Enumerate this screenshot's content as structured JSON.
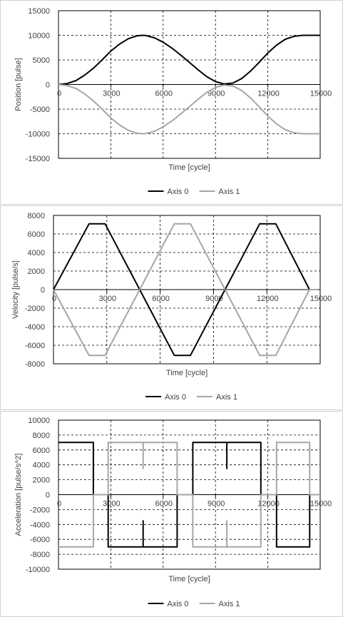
{
  "chart_data": [
    {
      "type": "line",
      "xlabel": "Time [cycle]",
      "ylabel": "Position [pulse]",
      "xlim": [
        0,
        15000
      ],
      "ylim": [
        -15000,
        15000
      ],
      "xticks": [
        0,
        3000,
        6000,
        9000,
        12000,
        15000
      ],
      "yticks": [
        -15000,
        -10000,
        -5000,
        0,
        5000,
        10000,
        15000
      ],
      "grid": "dashed",
      "legend": "bottom-center",
      "series": [
        {
          "name": "Axis 0",
          "color": "#000000",
          "x": [
            0,
            500,
            1000,
            1500,
            2000,
            2500,
            3000,
            3500,
            4000,
            4500,
            4800,
            5000,
            5500,
            6000,
            6500,
            7000,
            7500,
            8000,
            8500,
            9000,
            9500,
            10000,
            10500,
            11000,
            11500,
            12000,
            12500,
            13000,
            13500,
            14000,
            14400,
            15000
          ],
          "y": [
            0,
            200,
            800,
            1900,
            3300,
            5000,
            6800,
            8200,
            9300,
            9900,
            10000,
            9950,
            9500,
            8600,
            7400,
            6000,
            4500,
            3000,
            1600,
            600,
            100,
            300,
            1200,
            2700,
            4500,
            6400,
            8000,
            9200,
            9800,
            10000,
            10000,
            10000
          ]
        },
        {
          "name": "Axis 1",
          "color": "#a6a6a6",
          "x": [
            0,
            500,
            1000,
            1500,
            2000,
            2500,
            3000,
            3500,
            4000,
            4500,
            4800,
            5000,
            5500,
            6000,
            6500,
            7000,
            7500,
            8000,
            8500,
            9000,
            9500,
            10000,
            10500,
            11000,
            11500,
            12000,
            12500,
            13000,
            13500,
            14000,
            14400,
            15000
          ],
          "y": [
            0,
            -200,
            -800,
            -1900,
            -3300,
            -5000,
            -6800,
            -8200,
            -9300,
            -9900,
            -10000,
            -9950,
            -9500,
            -8600,
            -7400,
            -6000,
            -4500,
            -3000,
            -1600,
            -600,
            -100,
            -300,
            -1200,
            -2700,
            -4500,
            -6400,
            -8000,
            -9200,
            -9800,
            -10000,
            -10000,
            -10000
          ]
        }
      ]
    },
    {
      "type": "line",
      "xlabel": "Time [cycle]",
      "ylabel": "Velocity [pulse/s]",
      "xlim": [
        0,
        15000
      ],
      "ylim": [
        -8000,
        8000
      ],
      "xticks": [
        0,
        3000,
        6000,
        9000,
        12000,
        15000
      ],
      "yticks": [
        -8000,
        -6000,
        -4000,
        -2000,
        0,
        2000,
        4000,
        6000,
        8000
      ],
      "grid": "dashed",
      "legend": "bottom-center",
      "series": [
        {
          "name": "Axis 0",
          "color": "#000000",
          "x": [
            0,
            2000,
            2900,
            4850,
            6800,
            7700,
            9650,
            11600,
            12500,
            14400,
            14900
          ],
          "y": [
            0,
            7100,
            7100,
            0,
            -7100,
            -7100,
            0,
            7100,
            7100,
            0,
            0
          ]
        },
        {
          "name": "Axis 1",
          "color": "#a6a6a6",
          "x": [
            0,
            2000,
            2900,
            4850,
            6800,
            7700,
            9650,
            11600,
            12500,
            14400,
            14900
          ],
          "y": [
            0,
            -7100,
            -7100,
            0,
            7100,
            7100,
            0,
            -7100,
            -7100,
            0,
            0
          ]
        }
      ]
    },
    {
      "type": "line",
      "xlabel": "Time [cycle]",
      "ylabel": "Acceleration [pulse/s^2]",
      "xlim": [
        0,
        15000
      ],
      "ylim": [
        -10000,
        10000
      ],
      "xticks": [
        0,
        3000,
        6000,
        9000,
        12000,
        15000
      ],
      "yticks": [
        -10000,
        -8000,
        -6000,
        -4000,
        -2000,
        0,
        2000,
        4000,
        6000,
        8000,
        10000
      ],
      "grid": "dashed",
      "legend": "bottom-center",
      "series": [
        {
          "name": "Axis 0",
          "color": "#000000",
          "x": [
            0,
            2000,
            2000,
            2850,
            2850,
            4850,
            4850,
            4850,
            4850,
            6800,
            6800,
            7700,
            7700,
            9650,
            9650,
            9650,
            9650,
            11600,
            11600,
            12500,
            12500,
            14400,
            14400,
            15000
          ],
          "y": [
            7000,
            7000,
            0,
            0,
            -7000,
            -7000,
            -3500,
            -3500,
            -7000,
            -7000,
            0,
            0,
            7000,
            7000,
            3500,
            3500,
            7000,
            7000,
            0,
            0,
            -7000,
            -7000,
            0,
            0
          ]
        },
        {
          "name": "Axis 1",
          "color": "#a6a6a6",
          "x": [
            0,
            2000,
            2000,
            2850,
            2850,
            4850,
            4850,
            4850,
            4850,
            6800,
            6800,
            7700,
            7700,
            9650,
            9650,
            9650,
            9650,
            11600,
            11600,
            12500,
            12500,
            14400,
            14400,
            15000
          ],
          "y": [
            -7000,
            -7000,
            0,
            0,
            7000,
            7000,
            3500,
            3500,
            7000,
            7000,
            0,
            0,
            -7000,
            -7000,
            -3500,
            -3500,
            -7000,
            -7000,
            0,
            0,
            7000,
            7000,
            0,
            0
          ]
        }
      ]
    }
  ]
}
